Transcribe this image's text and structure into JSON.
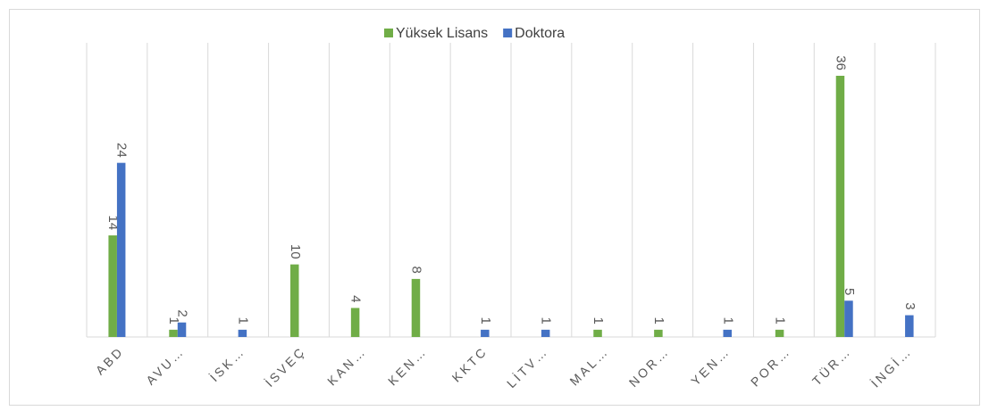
{
  "chart_data": {
    "type": "bar",
    "categories": [
      "ABD",
      "AVU…",
      "İSK…",
      "İSVEÇ",
      "KAN…",
      "KEN…",
      "KKTC",
      "LİTV…",
      "MAL…",
      "NOR…",
      "YEN…",
      "POR…",
      "TÜR…",
      "İNGİ…"
    ],
    "series": [
      {
        "name": "Yüksek Lisans",
        "color": "#70ad47",
        "values": [
          14,
          1,
          null,
          10,
          4,
          8,
          null,
          null,
          1,
          1,
          null,
          1,
          36,
          null
        ]
      },
      {
        "name": "Doktora",
        "color": "#4472c4",
        "values": [
          24,
          2,
          1,
          null,
          null,
          null,
          1,
          1,
          null,
          null,
          1,
          null,
          5,
          3
        ]
      }
    ],
    "legend": "top"
  }
}
